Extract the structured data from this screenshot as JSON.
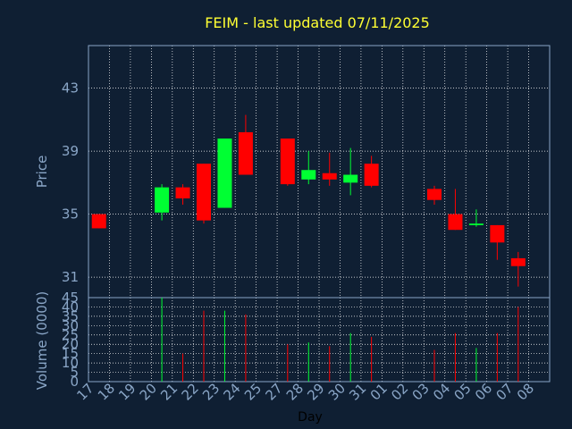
{
  "colors": {
    "background": "#0f1f33",
    "plot_border": "#8aa6c7",
    "grid": "#ffffff",
    "title": "#ffff33",
    "label": "#8aa6c7",
    "up": "#00ff33",
    "down": "#ff0000"
  },
  "chart_data": [
    {
      "type": "candlestick",
      "title": "FEIM - last updated 07/11/2025",
      "ylabel": "Price",
      "xlabel": "",
      "ylim": [
        29.7,
        45.7
      ],
      "yticks": [
        "43",
        "39",
        "35",
        "31"
      ],
      "ytick_values": [
        43,
        39,
        35,
        31
      ],
      "grid": true,
      "categories": [
        "17",
        "18",
        "19",
        "20",
        "21",
        "22",
        "23",
        "24",
        "25",
        "27",
        "28",
        "29",
        "30",
        "31",
        "01",
        "02",
        "03",
        "04",
        "05",
        "06",
        "07",
        "08"
      ],
      "candles": [
        {
          "x": "17",
          "open": 35.0,
          "high": 35.0,
          "low": 34.1,
          "close": 34.1
        },
        {
          "x": "20",
          "open": 35.1,
          "high": 36.9,
          "low": 34.6,
          "close": 36.7
        },
        {
          "x": "21",
          "open": 36.7,
          "high": 36.9,
          "low": 35.6,
          "close": 36.0
        },
        {
          "x": "22",
          "open": 38.2,
          "high": 38.2,
          "low": 34.4,
          "close": 34.6
        },
        {
          "x": "23",
          "open": 35.4,
          "high": 39.8,
          "low": 35.4,
          "close": 39.8
        },
        {
          "x": "24",
          "open": 40.2,
          "high": 41.3,
          "low": 37.5,
          "close": 37.5
        },
        {
          "x": "27",
          "open": 39.8,
          "high": 39.8,
          "low": 36.8,
          "close": 36.9
        },
        {
          "x": "28",
          "open": 37.2,
          "high": 39.0,
          "low": 36.9,
          "close": 37.8
        },
        {
          "x": "29",
          "open": 37.6,
          "high": 38.9,
          "low": 36.8,
          "close": 37.2
        },
        {
          "x": "30",
          "open": 37.0,
          "high": 39.2,
          "low": 36.2,
          "close": 37.5
        },
        {
          "x": "31",
          "open": 38.2,
          "high": 38.7,
          "low": 36.7,
          "close": 36.8
        },
        {
          "x": "03",
          "open": 36.6,
          "high": 36.8,
          "low": 35.6,
          "close": 35.9
        },
        {
          "x": "04",
          "open": 35.0,
          "high": 36.6,
          "low": 34.0,
          "close": 34.0
        },
        {
          "x": "05",
          "open": 34.3,
          "high": 35.3,
          "low": 34.2,
          "close": 34.4
        },
        {
          "x": "06",
          "open": 34.3,
          "high": 34.3,
          "low": 32.1,
          "close": 33.2
        },
        {
          "x": "07",
          "open": 32.2,
          "high": 32.6,
          "low": 30.4,
          "close": 31.7
        }
      ]
    },
    {
      "type": "bar",
      "ylabel": "Volume (0000)",
      "xlabel": "Day",
      "ylim": [
        0,
        45
      ],
      "yticks": [
        "45",
        "40",
        "35",
        "30",
        "25",
        "20",
        "15",
        "10",
        "5",
        "0"
      ],
      "ytick_values": [
        45,
        40,
        35,
        30,
        25,
        20,
        15,
        10,
        5,
        0
      ],
      "categories": [
        "17",
        "18",
        "19",
        "20",
        "21",
        "22",
        "23",
        "24",
        "25",
        "27",
        "28",
        "29",
        "30",
        "31",
        "01",
        "02",
        "03",
        "04",
        "05",
        "06",
        "07",
        "08"
      ],
      "bars": [
        {
          "x": "20",
          "value": 45,
          "direction": "up"
        },
        {
          "x": "21",
          "value": 15,
          "direction": "down"
        },
        {
          "x": "22",
          "value": 38,
          "direction": "down"
        },
        {
          "x": "23",
          "value": 38,
          "direction": "up"
        },
        {
          "x": "24",
          "value": 36,
          "direction": "down"
        },
        {
          "x": "27",
          "value": 20,
          "direction": "down"
        },
        {
          "x": "28",
          "value": 21,
          "direction": "up"
        },
        {
          "x": "29",
          "value": 19,
          "direction": "down"
        },
        {
          "x": "30",
          "value": 26,
          "direction": "up"
        },
        {
          "x": "31",
          "value": 24,
          "direction": "down"
        },
        {
          "x": "03",
          "value": 17,
          "direction": "down"
        },
        {
          "x": "04",
          "value": 26,
          "direction": "down"
        },
        {
          "x": "05",
          "value": 18,
          "direction": "up"
        },
        {
          "x": "06",
          "value": 26,
          "direction": "down"
        },
        {
          "x": "07",
          "value": 40,
          "direction": "down"
        }
      ]
    }
  ]
}
